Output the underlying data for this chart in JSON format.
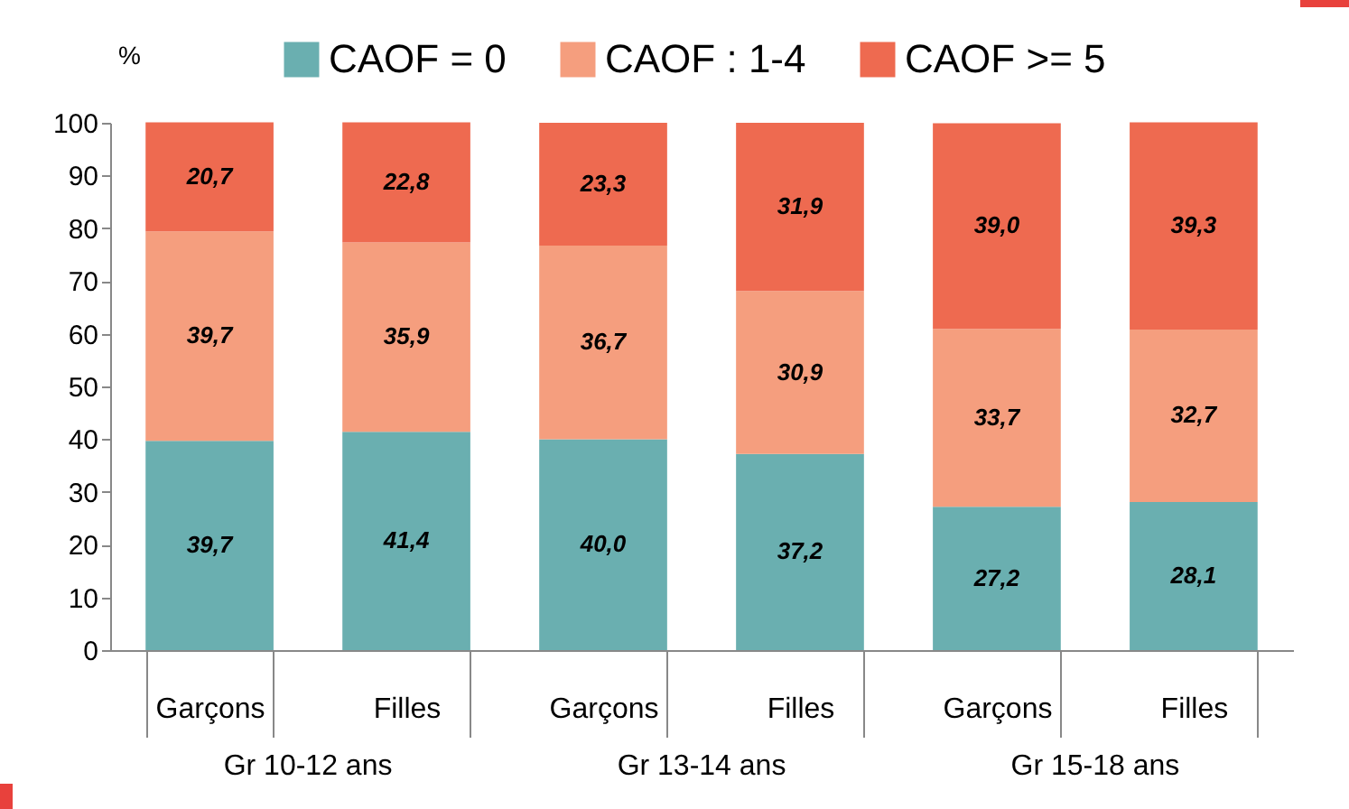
{
  "chart_data": {
    "type": "bar",
    "stacked": true,
    "ylabel": "%",
    "categories": [
      "Garçons",
      "Filles",
      "Garçons",
      "Filles",
      "Garçons",
      "Filles"
    ],
    "series": [
      {
        "name": "CAOF = 0",
        "color": "#6aafb0",
        "values": [
          39.7,
          41.4,
          40.0,
          37.2,
          27.2,
          28.1
        ],
        "value_labels": [
          "39,7",
          "41,4",
          "40,0",
          "37,2",
          "27,2",
          "28,1"
        ]
      },
      {
        "name": "CAOF : 1-4",
        "color": "#f59e7e",
        "values": [
          39.7,
          35.9,
          36.7,
          30.9,
          33.7,
          32.7
        ],
        "value_labels": [
          "39,7",
          "35,9",
          "36,7",
          "30,9",
          "33,7",
          "32,7"
        ]
      },
      {
        "name": "CAOF >= 5",
        "color": "#ee6a50",
        "values": [
          20.7,
          22.8,
          23.3,
          31.9,
          39.0,
          39.3
        ],
        "value_labels": [
          "20,7",
          "22,8",
          "23,3",
          "31,9",
          "39,0",
          "39,3"
        ]
      }
    ],
    "ylim": [
      0,
      100
    ],
    "yticks": [
      0,
      10,
      20,
      30,
      40,
      50,
      60,
      70,
      80,
      90,
      100
    ],
    "grid": false,
    "legend": "top",
    "annotations": [
      "Gr 10-12 ans",
      "Gr 13-14 ans",
      "Gr 15-18 ans"
    ]
  }
}
